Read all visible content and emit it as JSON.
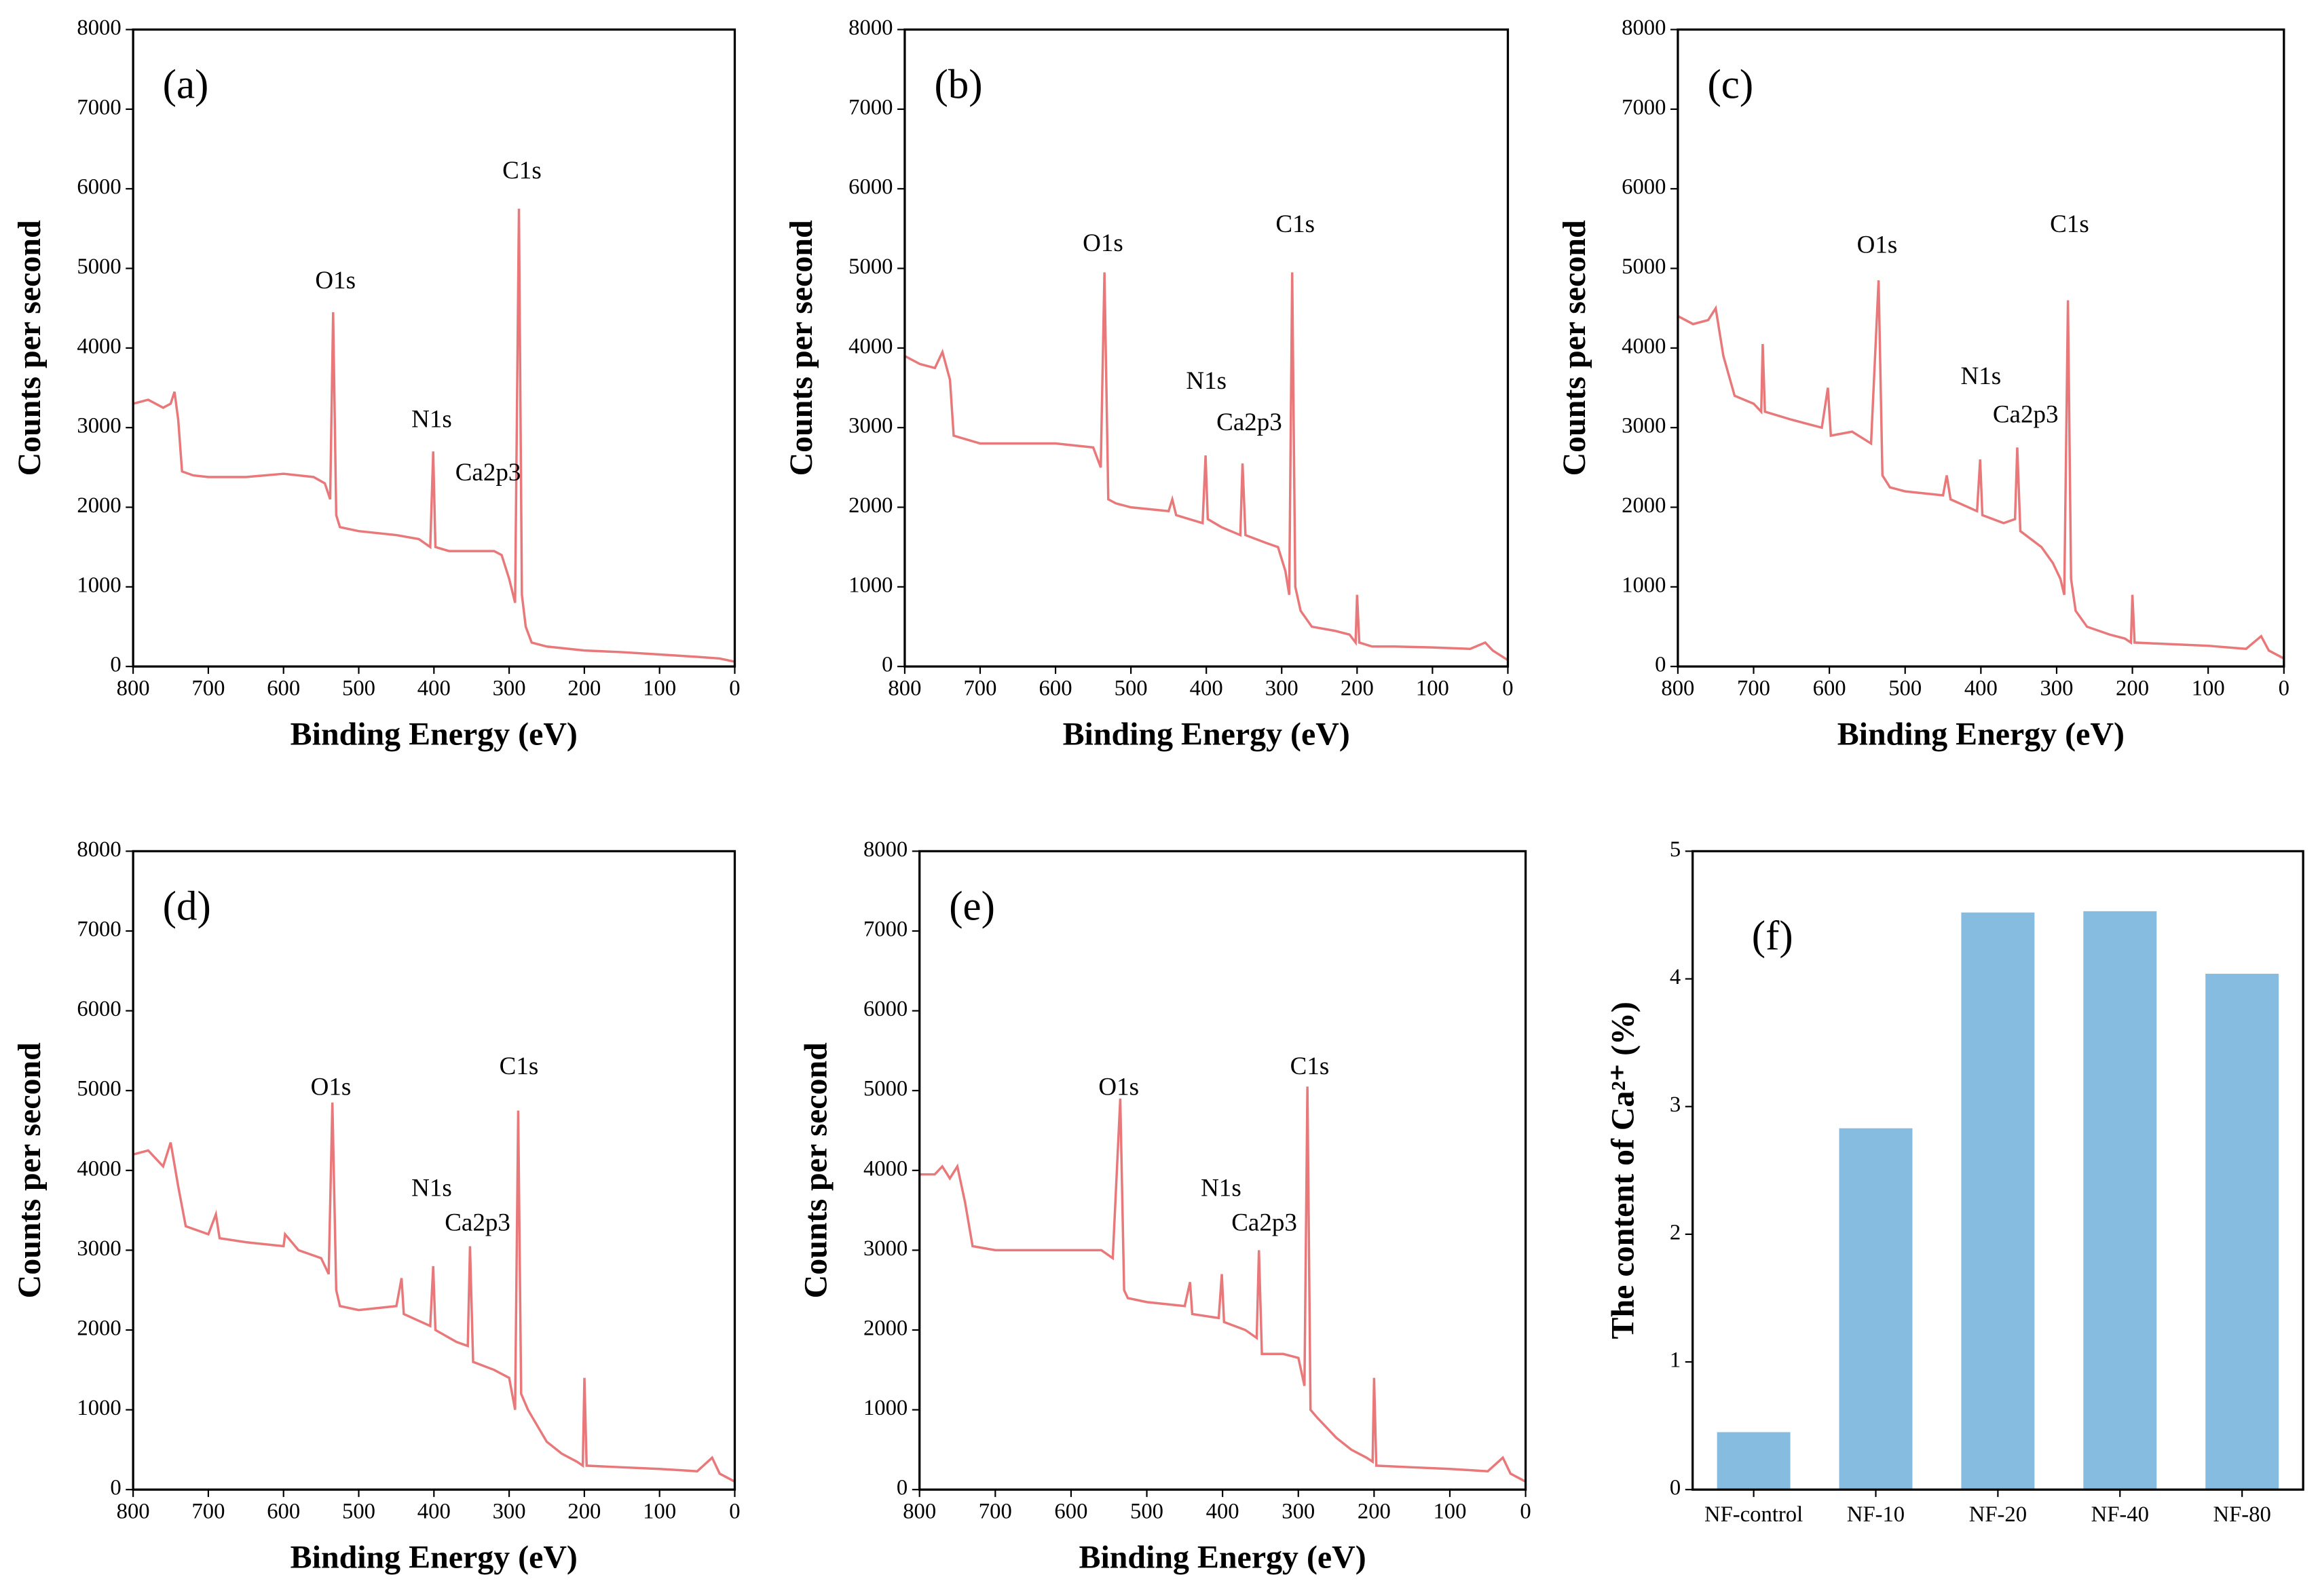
{
  "chart_data": [
    {
      "type": "line",
      "panel": "(a)",
      "x_label": "Binding Energy (eV)",
      "y_label": "Counts per second",
      "color": "#e8787a",
      "xlim": [
        800,
        0
      ],
      "ylim": [
        0,
        8000
      ],
      "xticks": [
        800,
        700,
        600,
        500,
        400,
        300,
        200,
        100,
        0
      ],
      "yticks": [
        0,
        1000,
        2000,
        3000,
        4000,
        5000,
        6000,
        7000,
        8000
      ],
      "x": [
        800,
        780,
        760,
        750,
        745,
        740,
        735,
        720,
        700,
        650,
        600,
        560,
        545,
        538,
        534,
        530,
        525,
        500,
        450,
        420,
        405,
        401,
        398,
        380,
        350,
        320,
        310,
        300,
        292,
        287,
        283,
        278,
        270,
        250,
        200,
        150,
        100,
        50,
        20,
        0
      ],
      "values": [
        3300,
        3350,
        3250,
        3300,
        3450,
        3100,
        2450,
        2400,
        2380,
        2380,
        2420,
        2380,
        2300,
        2100,
        4450,
        1900,
        1750,
        1700,
        1650,
        1600,
        1500,
        2700,
        1500,
        1450,
        1450,
        1450,
        1400,
        1100,
        800,
        5750,
        900,
        500,
        300,
        250,
        200,
        180,
        150,
        120,
        100,
        60
      ],
      "annotations": [
        {
          "text": "O1s",
          "x": 531,
          "y": 4820
        },
        {
          "text": "N1s",
          "x": 403,
          "y": 3080
        },
        {
          "text": "Ca2p3",
          "x": 328,
          "y": 2410
        },
        {
          "text": "C1s",
          "x": 283,
          "y": 6200
        }
      ]
    },
    {
      "type": "line",
      "panel": "(b)",
      "x_label": "Binding Energy (eV)",
      "y_label": "Counts per second",
      "color": "#e8787a",
      "xlim": [
        800,
        0
      ],
      "ylim": [
        0,
        8000
      ],
      "xticks": [
        800,
        700,
        600,
        500,
        400,
        300,
        200,
        100,
        0
      ],
      "yticks": [
        0,
        1000,
        2000,
        3000,
        4000,
        5000,
        6000,
        7000,
        8000
      ],
      "x": [
        800,
        780,
        760,
        750,
        740,
        735,
        700,
        650,
        600,
        550,
        540,
        535,
        530,
        520,
        500,
        450,
        445,
        440,
        405,
        401,
        398,
        380,
        355,
        352,
        348,
        320,
        305,
        295,
        290,
        286,
        282,
        275,
        260,
        230,
        210,
        202,
        200,
        197,
        180,
        150,
        100,
        50,
        30,
        20,
        0
      ],
      "values": [
        3900,
        3800,
        3750,
        3950,
        3600,
        2900,
        2800,
        2800,
        2800,
        2750,
        2500,
        4950,
        2100,
        2050,
        2000,
        1950,
        2100,
        1900,
        1800,
        2650,
        1850,
        1750,
        1650,
        2550,
        1650,
        1550,
        1500,
        1200,
        900,
        4950,
        1000,
        700,
        500,
        450,
        400,
        300,
        900,
        300,
        250,
        250,
        240,
        220,
        300,
        200,
        80
      ],
      "annotations": [
        {
          "text": "O1s",
          "x": 537,
          "y": 5290
        },
        {
          "text": "N1s",
          "x": 400,
          "y": 3560
        },
        {
          "text": "Ca2p3",
          "x": 343,
          "y": 3040
        },
        {
          "text": "C1s",
          "x": 282,
          "y": 5530
        }
      ]
    },
    {
      "type": "line",
      "panel": "(c)",
      "x_label": "Binding Energy (eV)",
      "y_label": "Counts per second",
      "color": "#e8787a",
      "xlim": [
        800,
        0
      ],
      "ylim": [
        0,
        8000
      ],
      "xticks": [
        800,
        700,
        600,
        500,
        400,
        300,
        200,
        100,
        0
      ],
      "yticks": [
        0,
        1000,
        2000,
        3000,
        4000,
        5000,
        6000,
        7000,
        8000
      ],
      "x": [
        800,
        780,
        760,
        750,
        740,
        725,
        700,
        690,
        688,
        685,
        650,
        610,
        602,
        598,
        570,
        545,
        535,
        530,
        520,
        500,
        450,
        445,
        440,
        405,
        401,
        398,
        370,
        355,
        352,
        348,
        320,
        305,
        295,
        290,
        285,
        281,
        275,
        260,
        230,
        210,
        202,
        200,
        197,
        150,
        100,
        50,
        30,
        20,
        0
      ],
      "values": [
        4400,
        4300,
        4350,
        4500,
        3900,
        3400,
        3300,
        3200,
        4050,
        3200,
        3100,
        3000,
        3500,
        2900,
        2950,
        2800,
        4850,
        2400,
        2250,
        2200,
        2150,
        2400,
        2100,
        1950,
        2600,
        1900,
        1800,
        1850,
        2750,
        1700,
        1500,
        1300,
        1100,
        900,
        4600,
        1100,
        700,
        500,
        400,
        350,
        300,
        900,
        300,
        280,
        260,
        220,
        380,
        200,
        100
      ],
      "annotations": [
        {
          "text": "O1s",
          "x": 537,
          "y": 5270
        },
        {
          "text": "N1s",
          "x": 400,
          "y": 3620
        },
        {
          "text": "Ca2p3",
          "x": 341,
          "y": 3140
        },
        {
          "text": "C1s",
          "x": 283,
          "y": 5530
        }
      ]
    },
    {
      "type": "line",
      "panel": "(d)",
      "x_label": "Binding Energy (eV)",
      "y_label": "Counts per second",
      "color": "#e8787a",
      "xlim": [
        800,
        0
      ],
      "ylim": [
        0,
        8000
      ],
      "xticks": [
        800,
        700,
        600,
        500,
        400,
        300,
        200,
        100,
        0
      ],
      "yticks": [
        0,
        1000,
        2000,
        3000,
        4000,
        5000,
        6000,
        7000,
        8000
      ],
      "x": [
        800,
        780,
        760,
        750,
        740,
        730,
        700,
        690,
        685,
        650,
        600,
        598,
        580,
        550,
        540,
        535,
        530,
        525,
        500,
        450,
        443,
        440,
        405,
        401,
        398,
        370,
        355,
        352,
        348,
        320,
        300,
        292,
        288,
        284,
        275,
        250,
        230,
        210,
        202,
        200,
        197,
        150,
        100,
        50,
        30,
        20,
        0
      ],
      "values": [
        4200,
        4250,
        4050,
        4350,
        3800,
        3300,
        3200,
        3450,
        3150,
        3100,
        3050,
        3200,
        3000,
        2900,
        2700,
        4850,
        2500,
        2300,
        2250,
        2300,
        2650,
        2200,
        2050,
        2800,
        2000,
        1850,
        1800,
        3050,
        1600,
        1500,
        1400,
        1000,
        4750,
        1200,
        1000,
        600,
        450,
        350,
        300,
        1400,
        300,
        280,
        260,
        230,
        400,
        200,
        100
      ],
      "annotations": [
        {
          "text": "O1s",
          "x": 537,
          "y": 5020
        },
        {
          "text": "N1s",
          "x": 403,
          "y": 3750
        },
        {
          "text": "Ca2p3",
          "x": 342,
          "y": 3320
        },
        {
          "text": "C1s",
          "x": 287,
          "y": 5280
        }
      ]
    },
    {
      "type": "line",
      "panel": "(e)",
      "x_label": "Binding Energy (eV)",
      "y_label": "Counts per second",
      "color": "#e8787a",
      "xlim": [
        800,
        0
      ],
      "ylim": [
        0,
        8000
      ],
      "xticks": [
        800,
        700,
        600,
        500,
        400,
        300,
        200,
        100,
        0
      ],
      "yticks": [
        0,
        1000,
        2000,
        3000,
        4000,
        5000,
        6000,
        7000,
        8000
      ],
      "x": [
        800,
        780,
        770,
        760,
        750,
        740,
        730,
        700,
        650,
        600,
        560,
        545,
        535,
        530,
        525,
        500,
        450,
        443,
        440,
        405,
        401,
        398,
        370,
        355,
        352,
        348,
        320,
        300,
        292,
        288,
        284,
        275,
        250,
        230,
        210,
        202,
        200,
        197,
        150,
        100,
        50,
        30,
        20,
        0
      ],
      "values": [
        3950,
        3950,
        4050,
        3900,
        4050,
        3600,
        3050,
        3000,
        3000,
        3000,
        3000,
        2900,
        4900,
        2500,
        2400,
        2350,
        2300,
        2600,
        2200,
        2150,
        2700,
        2100,
        2000,
        1900,
        3000,
        1700,
        1700,
        1650,
        1300,
        5050,
        1000,
        900,
        650,
        500,
        400,
        350,
        1400,
        300,
        280,
        260,
        230,
        400,
        200,
        100
      ],
      "annotations": [
        {
          "text": "O1s",
          "x": 537,
          "y": 5020
        },
        {
          "text": "N1s",
          "x": 402,
          "y": 3750
        },
        {
          "text": "Ca2p3",
          "x": 345,
          "y": 3320
        },
        {
          "text": "C1s",
          "x": 285,
          "y": 5280
        }
      ]
    },
    {
      "type": "bar",
      "panel": "(f)",
      "y_label": "The content of Ca²⁺ (%)",
      "color": "#86bcdf",
      "categories": [
        "NF-control",
        "NF-10",
        "NF-20",
        "NF-40",
        "NF-80"
      ],
      "values": [
        0.45,
        2.83,
        4.52,
        4.53,
        4.04
      ],
      "ylim": [
        0,
        5
      ],
      "yticks": [
        0,
        1,
        2,
        3,
        4,
        5
      ]
    }
  ]
}
